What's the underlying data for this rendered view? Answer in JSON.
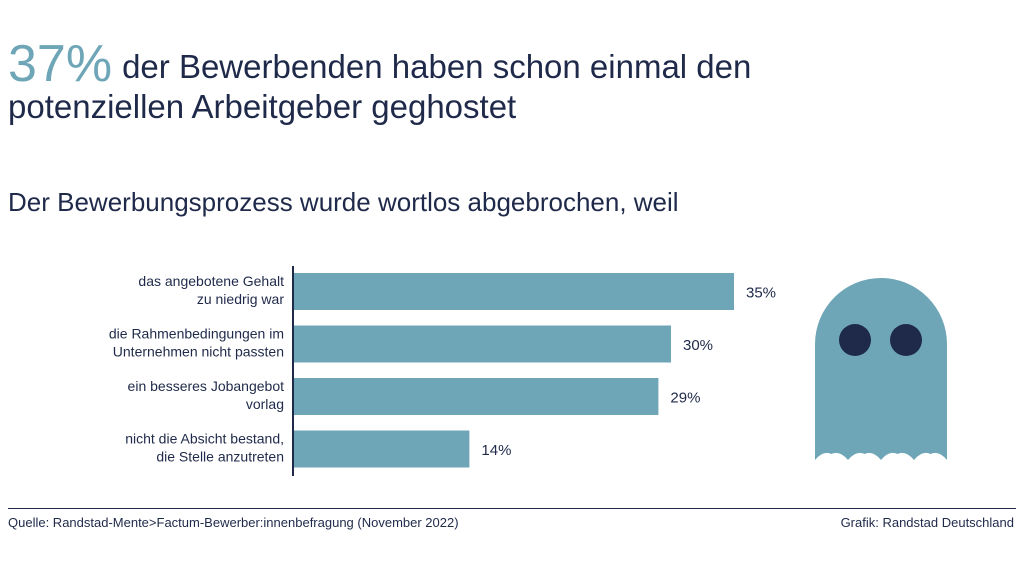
{
  "headline": {
    "big_number": "37%",
    "line1": "der Bewerbenden haben schon einmal den",
    "line2": "potenziellen Arbeitgeber geghostet"
  },
  "subtitle": "Der Bewerbungsprozess wurde wortlos abgebrochen, weil",
  "chart_data": {
    "type": "bar",
    "orientation": "horizontal",
    "title": "Der Bewerbungsprozess wurde wortlos abgebrochen, weil",
    "categories": [
      [
        "das angebotene Gehalt",
        "zu niedrig war"
      ],
      [
        "die Rahmenbedingungen im",
        "Unternehmen nicht passten"
      ],
      [
        "ein besseres Jobangebot",
        "vorlag"
      ],
      [
        "nicht die Absicht bestand,",
        "die Stelle anzutreten"
      ]
    ],
    "values": [
      35,
      30,
      29,
      14
    ],
    "labels": [
      "35%",
      "30%",
      "29%",
      "14%"
    ],
    "xlim": [
      0,
      35
    ],
    "unit": "%",
    "bar_color": "#6fa6b7",
    "axis_color": "#1f2a4a"
  },
  "illustration": {
    "ghost_color": "#6fa6b7",
    "eye_color": "#1f2a4a"
  },
  "footer": {
    "source": "Quelle: Randstad-Mente>Factum-Bewerber:innenbefragung (November 2022)",
    "credit": "Grafik: Randstad Deutschland"
  }
}
